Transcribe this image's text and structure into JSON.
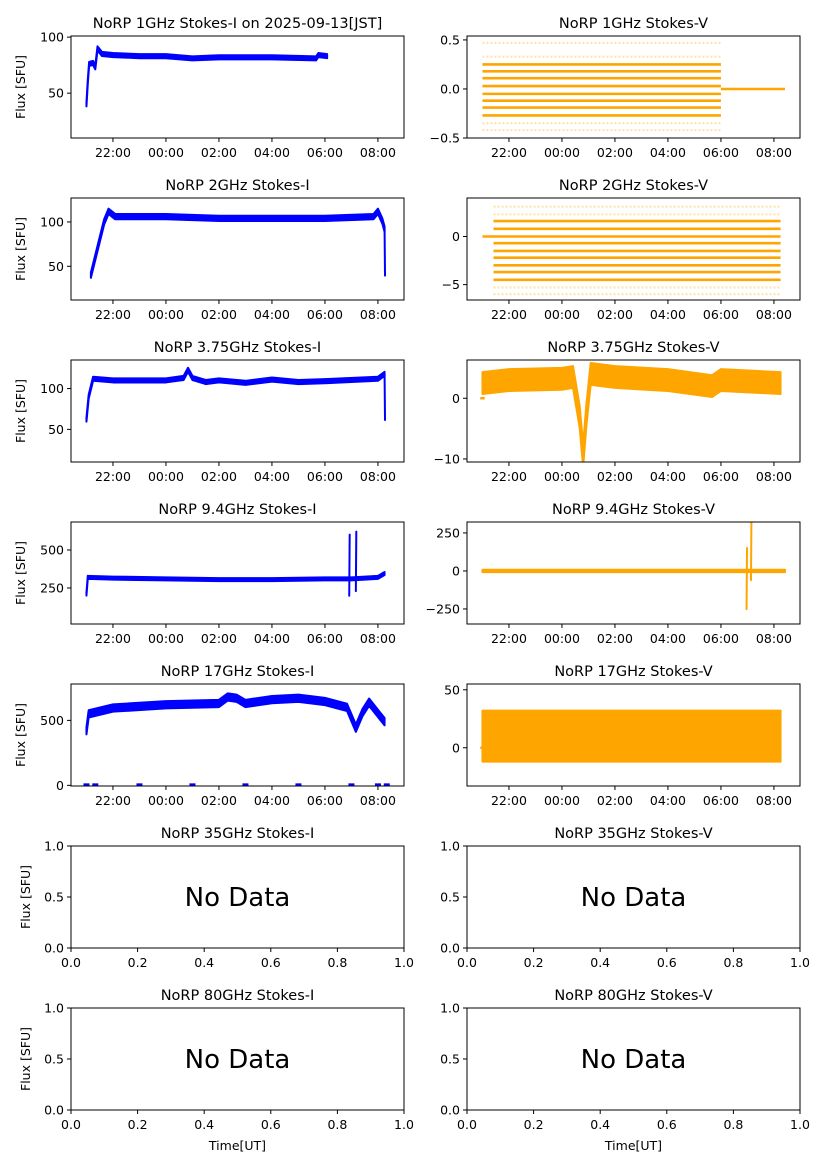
{
  "figure": {
    "xlabel": "Time[UT]"
  },
  "colors": {
    "stokes_i": "#0000ff",
    "stokes_v": "#ffa500"
  },
  "chart_data": [
    {
      "type": "scatter",
      "title": "NoRP 1GHz Stokes-I on 2025-09-13[JST]",
      "ylabel": "Flux [SFU]",
      "color": "#0000ff",
      "xlim": [
        "20:25",
        "08:59"
      ],
      "ylim": [
        10,
        101
      ],
      "yticks": [
        "50",
        "100"
      ],
      "ytick_values": [
        50,
        100
      ],
      "xticks": [
        "22:00",
        "00:00",
        "02:00",
        "04:00",
        "06:00",
        "08:00"
      ],
      "series": [
        {
          "spread": 1.8,
          "points": [
            [
              "21:00",
              40
            ],
            [
              "21:03",
              60
            ],
            [
              "21:06",
              76
            ],
            [
              "21:15",
              77
            ],
            [
              "21:20",
              73
            ],
            [
              "21:25",
              90
            ],
            [
              "21:35",
              85
            ],
            [
              "22:00",
              84
            ],
            [
              "23:00",
              83
            ],
            [
              "00:00",
              83
            ],
            [
              "01:00",
              81
            ],
            [
              "02:00",
              82
            ],
            [
              "04:00",
              82
            ],
            [
              "05:40",
              81
            ],
            [
              "05:45",
              84
            ],
            [
              "06:05",
              83
            ]
          ]
        }
      ]
    },
    {
      "type": "scatter",
      "title": "NoRP 1GHz Stokes-V",
      "ylabel": "",
      "color": "#ffa500",
      "xlim": [
        "20:25",
        "08:59"
      ],
      "ylim": [
        -0.5,
        0.54
      ],
      "yticks": [
        "−0.5",
        "0.0",
        "0.5"
      ],
      "ytick_values": [
        -0.5,
        0,
        0.5
      ],
      "xticks": [
        "22:00",
        "00:00",
        "02:00",
        "04:00",
        "06:00",
        "08:00"
      ],
      "stripes": {
        "t_range": [
          "21:00",
          "06:00"
        ],
        "levels": [
          0.25,
          0.18,
          0.11,
          0.03,
          -0.05,
          -0.12,
          -0.19,
          -0.27
        ],
        "faint_levels": [
          0.47,
          0.33,
          -0.35,
          -0.42
        ]
      },
      "zero_line": {
        "t_range": [
          "06:00",
          "08:25"
        ]
      }
    },
    {
      "type": "scatter",
      "title": "NoRP 2GHz Stokes-I",
      "ylabel": "Flux [SFU]",
      "color": "#0000ff",
      "xlim": [
        "20:25",
        "08:59"
      ],
      "ylim": [
        12,
        127
      ],
      "yticks": [
        "50",
        "100"
      ],
      "ytick_values": [
        50,
        100
      ],
      "xticks": [
        "22:00",
        "00:00",
        "02:00",
        "04:00",
        "06:00",
        "08:00"
      ],
      "series": [
        {
          "spread": 3,
          "points": [
            [
              "21:10",
              40
            ],
            [
              "21:40",
              100
            ],
            [
              "21:50",
              112
            ],
            [
              "22:05",
              106
            ],
            [
              "00:00",
              106
            ],
            [
              "01:00",
              105
            ],
            [
              "02:00",
              104
            ],
            [
              "04:00",
              104
            ],
            [
              "06:00",
              104
            ],
            [
              "07:50",
              106
            ],
            [
              "08:00",
              112
            ],
            [
              "08:10",
              101
            ],
            [
              "08:15",
              92
            ]
          ]
        },
        {
          "spread": 0.5,
          "points": [
            [
              "08:15",
              92
            ],
            [
              "08:16",
              40
            ]
          ]
        }
      ]
    },
    {
      "type": "scatter",
      "title": "NoRP 2GHz Stokes-V",
      "ylabel": "",
      "color": "#ffa500",
      "xlim": [
        "20:25",
        "08:59"
      ],
      "ylim": [
        -6.6,
        4
      ],
      "yticks": [
        "−5",
        "0"
      ],
      "ytick_values": [
        -5,
        0
      ],
      "xticks": [
        "22:00",
        "00:00",
        "02:00",
        "04:00",
        "06:00",
        "08:00"
      ],
      "stripes": {
        "t_range": [
          "21:25",
          "08:15"
        ],
        "levels": [
          1.6,
          0.8,
          0,
          -0.7,
          -1.5,
          -2.2,
          -3.0,
          -3.7,
          -4.5
        ],
        "faint_levels": [
          3.1,
          2.3,
          -5.3,
          -6.0
        ]
      },
      "zero_line": {
        "t_range": [
          "21:00",
          "21:25"
        ]
      }
    },
    {
      "type": "scatter",
      "title": "NoRP 3.75GHz Stokes-I",
      "ylabel": "Flux [SFU]",
      "color": "#0000ff",
      "xlim": [
        "20:25",
        "08:59"
      ],
      "ylim": [
        10,
        135
      ],
      "yticks": [
        "50",
        "100"
      ],
      "ytick_values": [
        50,
        100
      ],
      "xticks": [
        "22:00",
        "00:00",
        "02:00",
        "04:00",
        "06:00",
        "08:00"
      ],
      "series": [
        {
          "spread": 2.5,
          "points": [
            [
              "21:00",
              62
            ],
            [
              "21:05",
              90
            ],
            [
              "21:15",
              112
            ],
            [
              "22:00",
              110
            ],
            [
              "00:00",
              110
            ],
            [
              "00:40",
              113
            ],
            [
              "00:50",
              123
            ],
            [
              "01:00",
              113
            ],
            [
              "01:30",
              108
            ],
            [
              "02:00",
              110
            ],
            [
              "03:00",
              107
            ],
            [
              "04:00",
              111
            ],
            [
              "05:00",
              108
            ],
            [
              "06:00",
              109
            ],
            [
              "08:00",
              112
            ],
            [
              "08:15",
              118
            ]
          ]
        },
        {
          "spread": 0.5,
          "points": [
            [
              "08:15",
              118
            ],
            [
              "08:16",
              62
            ]
          ]
        }
      ]
    },
    {
      "type": "scatter",
      "title": "NoRP 3.75GHz Stokes-V",
      "ylabel": "",
      "color": "#ffa500",
      "xlim": [
        "20:25",
        "08:59"
      ],
      "ylim": [
        -10.5,
        6.3
      ],
      "yticks": [
        "−10",
        "0"
      ],
      "ytick_values": [
        -10,
        0
      ],
      "xticks": [
        "22:00",
        "00:00",
        "02:00",
        "04:00",
        "06:00",
        "08:00"
      ],
      "series": [
        {
          "spread": 1.8,
          "points": [
            [
              "21:00",
              2.5
            ],
            [
              "22:00",
              3
            ],
            [
              "00:00",
              3.2
            ],
            [
              "00:25",
              3.5
            ],
            [
              "00:40",
              -3
            ],
            [
              "00:48",
              -9.5
            ],
            [
              "00:55",
              -3
            ],
            [
              "01:05",
              4
            ],
            [
              "02:00",
              3.5
            ],
            [
              "04:00",
              3
            ],
            [
              "05:40",
              2
            ],
            [
              "06:00",
              3
            ],
            [
              "08:15",
              2.5
            ]
          ]
        }
      ],
      "zero_line": {
        "t_range": [
          "20:55",
          "21:05"
        ]
      }
    },
    {
      "type": "scatter",
      "title": "NoRP 9.4GHz Stokes-I",
      "ylabel": "Flux [SFU]",
      "color": "#0000ff",
      "xlim": [
        "20:25",
        "08:59"
      ],
      "ylim": [
        13,
        684
      ],
      "yticks": [
        "250",
        "500"
      ],
      "ytick_values": [
        250,
        500
      ],
      "xticks": [
        "22:00",
        "00:00",
        "02:00",
        "04:00",
        "06:00",
        "08:00"
      ],
      "series": [
        {
          "spread": 10,
          "points": [
            [
              "21:00",
              210
            ],
            [
              "21:03",
              320
            ],
            [
              "22:00",
              315
            ],
            [
              "00:00",
              310
            ],
            [
              "02:00",
              305
            ],
            [
              "04:00",
              305
            ],
            [
              "06:00",
              310
            ],
            [
              "07:00",
              310
            ],
            [
              "08:00",
              320
            ],
            [
              "08:15",
              345
            ]
          ]
        },
        {
          "spread": 1,
          "points": [
            [
              "06:55",
              200
            ],
            [
              "06:56",
              600
            ]
          ]
        },
        {
          "spread": 1,
          "points": [
            [
              "07:10",
              230
            ],
            [
              "07:11",
              620
            ]
          ]
        }
      ]
    },
    {
      "type": "scatter",
      "title": "NoRP 9.4GHz Stokes-V",
      "ylabel": "",
      "color": "#ffa500",
      "xlim": [
        "20:25",
        "08:59"
      ],
      "ylim": [
        -349,
        322
      ],
      "yticks": [
        "−250",
        "0",
        "250"
      ],
      "ytick_values": [
        -250,
        0,
        250
      ],
      "xticks": [
        "22:00",
        "00:00",
        "02:00",
        "04:00",
        "06:00",
        "08:00"
      ],
      "series": [
        {
          "spread": 8,
          "points": [
            [
              "21:00",
              0
            ],
            [
              "08:25",
              0
            ]
          ]
        },
        {
          "spread": 1,
          "points": [
            [
              "06:58",
              -250
            ],
            [
              "06:59",
              150
            ]
          ]
        },
        {
          "spread": 1,
          "points": [
            [
              "07:08",
              -60
            ],
            [
              "07:09",
              330
            ]
          ]
        }
      ]
    },
    {
      "type": "scatter",
      "title": "NoRP 17GHz Stokes-I",
      "ylabel": "Flux [SFU]",
      "color": "#0000ff",
      "xlim": [
        "20:25",
        "08:59"
      ],
      "ylim": [
        -5,
        780
      ],
      "yticks": [
        "0",
        "500"
      ],
      "ytick_values": [
        0,
        500
      ],
      "xticks": [
        "22:00",
        "00:00",
        "02:00",
        "04:00",
        "06:00",
        "08:00"
      ],
      "series": [
        {
          "spread": 28,
          "points": [
            [
              "21:00",
              420
            ],
            [
              "21:05",
              550
            ],
            [
              "22:00",
              595
            ],
            [
              "00:00",
              620
            ],
            [
              "02:00",
              630
            ],
            [
              "02:20",
              680
            ],
            [
              "02:40",
              670
            ],
            [
              "03:00",
              630
            ],
            [
              "04:00",
              660
            ],
            [
              "05:00",
              670
            ],
            [
              "06:00",
              645
            ],
            [
              "06:50",
              600
            ],
            [
              "07:10",
              440
            ],
            [
              "07:25",
              560
            ],
            [
              "07:40",
              640
            ],
            [
              "08:15",
              490
            ]
          ]
        }
      ],
      "points_at_zero": [
        "21:00",
        "21:20",
        "23:00",
        "01:00",
        "03:00",
        "05:00",
        "07:00",
        "08:00",
        "08:20"
      ]
    },
    {
      "type": "scatter",
      "title": "NoRP 17GHz Stokes-V",
      "ylabel": "",
      "color": "#ffa500",
      "xlim": [
        "20:25",
        "08:59"
      ],
      "ylim": [
        -33,
        55
      ],
      "yticks": [
        "0",
        "50"
      ],
      "ytick_values": [
        0,
        50
      ],
      "xticks": [
        "22:00",
        "00:00",
        "02:00",
        "04:00",
        "06:00",
        "08:00"
      ],
      "series": [
        {
          "spread": 22,
          "points": [
            [
              "21:00",
              10
            ],
            [
              "08:15",
              10
            ]
          ]
        }
      ],
      "zero_line": {
        "t_range": [
          "20:55",
          "21:05"
        ]
      }
    },
    {
      "type": "empty",
      "title": "NoRP 35GHz Stokes-I",
      "ylabel": "Flux [SFU]",
      "no_data_text": "No Data",
      "xlim": [
        0,
        1
      ],
      "ylim": [
        0,
        1
      ],
      "yticks": [
        "0.0",
        "0.5",
        "1.0"
      ],
      "xticks": [
        "0.0",
        "0.2",
        "0.4",
        "0.6",
        "0.8",
        "1.0"
      ]
    },
    {
      "type": "empty",
      "title": "NoRP 35GHz Stokes-V",
      "ylabel": "",
      "no_data_text": "No Data",
      "xlim": [
        0,
        1
      ],
      "ylim": [
        0,
        1
      ],
      "yticks": [
        "0.0",
        "0.5",
        "1.0"
      ],
      "xticks": [
        "0.0",
        "0.2",
        "0.4",
        "0.6",
        "0.8",
        "1.0"
      ]
    },
    {
      "type": "empty",
      "title": "NoRP 80GHz Stokes-I",
      "ylabel": "Flux [SFU]",
      "no_data_text": "No Data",
      "xlim": [
        0,
        1
      ],
      "ylim": [
        0,
        1
      ],
      "yticks": [
        "0.0",
        "0.5",
        "1.0"
      ],
      "xticks": [
        "0.0",
        "0.2",
        "0.4",
        "0.6",
        "0.8",
        "1.0"
      ]
    },
    {
      "type": "empty",
      "title": "NoRP 80GHz Stokes-V",
      "ylabel": "",
      "no_data_text": "No Data",
      "xlim": [
        0,
        1
      ],
      "ylim": [
        0,
        1
      ],
      "yticks": [
        "0.0",
        "0.5",
        "1.0"
      ],
      "xticks": [
        "0.0",
        "0.2",
        "0.4",
        "0.6",
        "0.8",
        "1.0"
      ]
    }
  ]
}
